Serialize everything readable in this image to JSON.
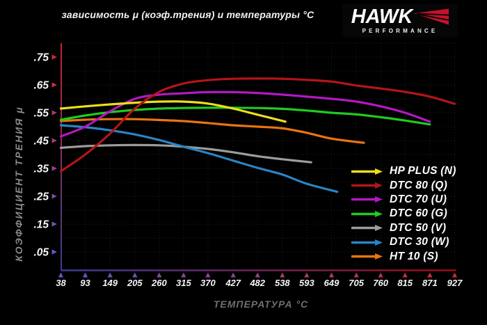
{
  "title": "зависимость μ (коэф.трения) и температуры °C",
  "logo": {
    "brand": "HAWK",
    "subbrand": "PERFORMANCE",
    "accent_color": "#c8102e"
  },
  "axis_style": {
    "y_axis_gradient": [
      "#cf2028",
      "#3c3c96"
    ],
    "x_axis_gradient": [
      "#3c3c96",
      "#9c0f14"
    ],
    "tick_arrow_cold": "#6058d2",
    "tick_arrow_hot": "#d22830",
    "tick_label_color": "#f5f5f5",
    "grid_color": "#212121"
  },
  "chart_data": {
    "type": "line",
    "title": "зависимость μ (коэф.трения) и температуры °C",
    "xlabel": "ТЕМПЕРАТУРА °C",
    "ylabel": "КОЭФФИЦИЕНТ ТРЕНИЯ μ",
    "x_ticks": [
      38,
      93,
      149,
      205,
      260,
      315,
      370,
      427,
      482,
      538,
      593,
      649,
      705,
      760,
      815,
      871,
      927
    ],
    "y_ticks": [
      0.05,
      0.15,
      0.25,
      0.35,
      0.45,
      0.55,
      0.65,
      0.75
    ],
    "y_tick_labels": [
      ".05",
      ".15",
      ".25",
      ".35",
      ".45",
      ".55",
      ".65",
      ".75"
    ],
    "xlim": [
      38,
      927
    ],
    "ylim": [
      0.0,
      0.8
    ],
    "grid": true,
    "legend_position": "lower right",
    "draw_order": [
      4,
      5,
      6,
      3,
      2,
      0,
      1
    ],
    "series": [
      {
        "name": "HP PLUS (N)",
        "color": "#ecdf1a",
        "points": [
          [
            38,
            0.565
          ],
          [
            93,
            0.573
          ],
          [
            149,
            0.58
          ],
          [
            205,
            0.586
          ],
          [
            260,
            0.59
          ],
          [
            315,
            0.59
          ],
          [
            370,
            0.583
          ],
          [
            427,
            0.565
          ],
          [
            482,
            0.543
          ],
          [
            545,
            0.518
          ]
        ]
      },
      {
        "name": "DTC 80 (Q)",
        "color": "#b41517",
        "points": [
          [
            38,
            0.34
          ],
          [
            93,
            0.4
          ],
          [
            149,
            0.475
          ],
          [
            205,
            0.565
          ],
          [
            260,
            0.625
          ],
          [
            315,
            0.655
          ],
          [
            370,
            0.667
          ],
          [
            427,
            0.672
          ],
          [
            482,
            0.673
          ],
          [
            538,
            0.672
          ],
          [
            593,
            0.668
          ],
          [
            649,
            0.662
          ],
          [
            705,
            0.648
          ],
          [
            760,
            0.637
          ],
          [
            815,
            0.625
          ],
          [
            871,
            0.608
          ],
          [
            927,
            0.582
          ]
        ]
      },
      {
        "name": "DTC 70 (U)",
        "color": "#b517c3",
        "points": [
          [
            38,
            0.465
          ],
          [
            93,
            0.5
          ],
          [
            149,
            0.555
          ],
          [
            205,
            0.6
          ],
          [
            260,
            0.615
          ],
          [
            315,
            0.62
          ],
          [
            370,
            0.624
          ],
          [
            427,
            0.624
          ],
          [
            482,
            0.621
          ],
          [
            538,
            0.615
          ],
          [
            593,
            0.608
          ],
          [
            649,
            0.6
          ],
          [
            705,
            0.59
          ],
          [
            760,
            0.573
          ],
          [
            815,
            0.55
          ],
          [
            871,
            0.518
          ]
        ]
      },
      {
        "name": "DTC 60 (G)",
        "color": "#1fcb20",
        "points": [
          [
            38,
            0.525
          ],
          [
            93,
            0.54
          ],
          [
            149,
            0.552
          ],
          [
            205,
            0.56
          ],
          [
            260,
            0.565
          ],
          [
            315,
            0.567
          ],
          [
            370,
            0.568
          ],
          [
            427,
            0.568
          ],
          [
            482,
            0.567
          ],
          [
            538,
            0.564
          ],
          [
            593,
            0.558
          ],
          [
            649,
            0.55
          ],
          [
            705,
            0.544
          ],
          [
            760,
            0.534
          ],
          [
            815,
            0.522
          ],
          [
            871,
            0.508
          ]
        ]
      },
      {
        "name": "DTC 50 (V)",
        "color": "#9c9c9c",
        "points": [
          [
            38,
            0.424
          ],
          [
            93,
            0.43
          ],
          [
            149,
            0.433
          ],
          [
            205,
            0.434
          ],
          [
            260,
            0.433
          ],
          [
            315,
            0.428
          ],
          [
            370,
            0.42
          ],
          [
            427,
            0.408
          ],
          [
            482,
            0.394
          ],
          [
            538,
            0.383
          ],
          [
            603,
            0.372
          ]
        ]
      },
      {
        "name": "DTC 30 (W)",
        "color": "#2b84c4",
        "points": [
          [
            38,
            0.505
          ],
          [
            93,
            0.498
          ],
          [
            149,
            0.487
          ],
          [
            205,
            0.472
          ],
          [
            260,
            0.452
          ],
          [
            315,
            0.428
          ],
          [
            370,
            0.405
          ],
          [
            427,
            0.378
          ],
          [
            482,
            0.352
          ],
          [
            538,
            0.328
          ],
          [
            593,
            0.295
          ],
          [
            662,
            0.266
          ]
        ]
      },
      {
        "name": "HT 10 (S)",
        "color": "#e97410",
        "points": [
          [
            38,
            0.52
          ],
          [
            93,
            0.525
          ],
          [
            149,
            0.527
          ],
          [
            205,
            0.527
          ],
          [
            260,
            0.524
          ],
          [
            315,
            0.52
          ],
          [
            370,
            0.513
          ],
          [
            427,
            0.505
          ],
          [
            482,
            0.5
          ],
          [
            538,
            0.494
          ],
          [
            593,
            0.478
          ],
          [
            649,
            0.457
          ],
          [
            722,
            0.442
          ]
        ]
      }
    ]
  }
}
